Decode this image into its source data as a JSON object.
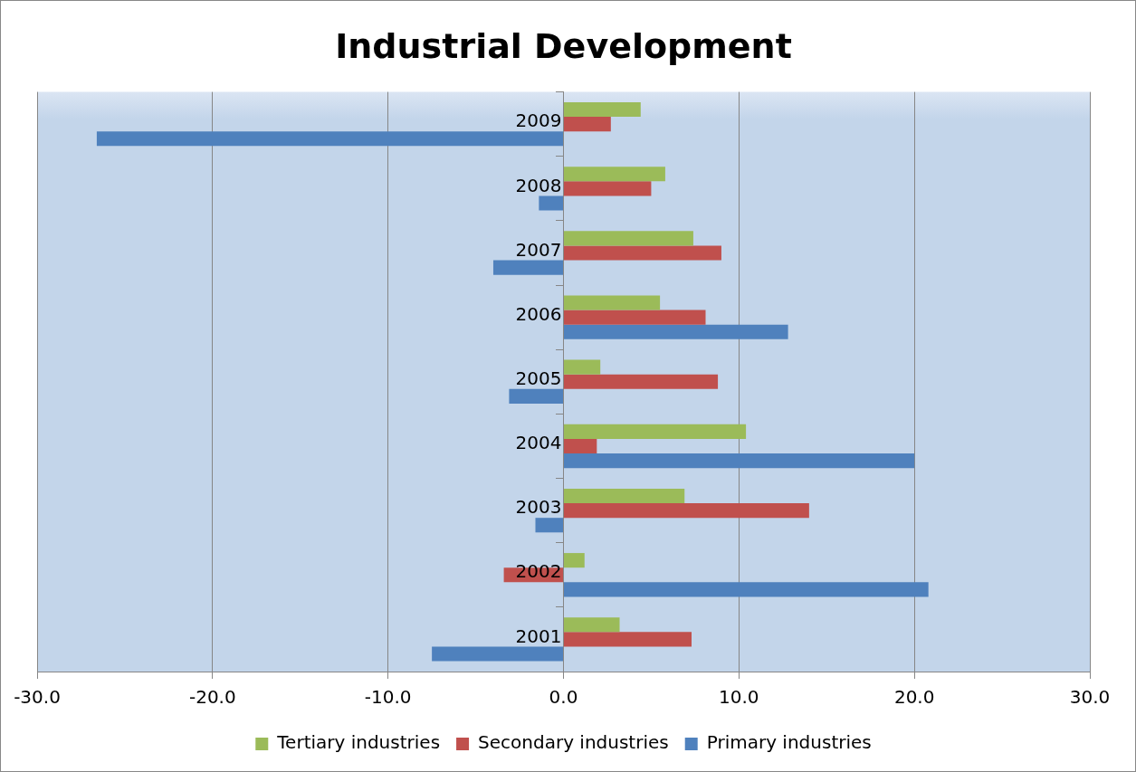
{
  "chart_data": {
    "type": "bar",
    "orientation": "horizontal",
    "title": "Industrial Development",
    "categories": [
      "2009",
      "2008",
      "2007",
      "2006",
      "2005",
      "2004",
      "2003",
      "2002",
      "2001"
    ],
    "series": [
      {
        "name": "Tertiary industries",
        "color": "#9bbb59",
        "values": [
          4.4,
          5.8,
          7.4,
          5.5,
          2.1,
          10.4,
          6.9,
          1.2,
          3.2
        ]
      },
      {
        "name": "Secondary industries",
        "color": "#c0504d",
        "values": [
          2.7,
          5.0,
          9.0,
          8.1,
          8.8,
          1.9,
          14.0,
          -3.4,
          7.3
        ]
      },
      {
        "name": "Primary industries",
        "color": "#4f81bd",
        "values": [
          -26.6,
          -1.4,
          -4.0,
          12.8,
          -3.1,
          20.0,
          -1.6,
          20.8,
          -7.5
        ]
      }
    ],
    "xlim": [
      -30,
      30
    ],
    "xticks": [
      {
        "value": -30,
        "label": "-30.0"
      },
      {
        "value": -20,
        "label": "-20.0"
      },
      {
        "value": -10,
        "label": "-10.0"
      },
      {
        "value": 0,
        "label": "0.0"
      },
      {
        "value": 10,
        "label": "10.0"
      },
      {
        "value": 20,
        "label": "20.0"
      },
      {
        "value": 30,
        "label": "30.0"
      }
    ],
    "grid": "x",
    "legend": "bottom"
  }
}
